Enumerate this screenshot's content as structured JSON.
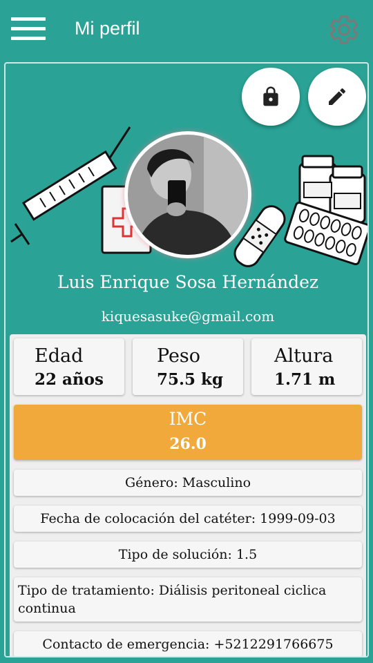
{
  "appbar": {
    "title": "Mi perfil",
    "menu_icon": "menu-icon",
    "settings_icon": "gear-icon"
  },
  "profile": {
    "name": "Luis Enrique Sosa Hernández",
    "email": "kiquesasuke@gmail.com"
  },
  "actions": {
    "lock_icon": "lock-icon",
    "edit_icon": "pencil-icon"
  },
  "stats": {
    "age_label": "Edad",
    "age_value": "22 años",
    "weight_label": "Peso",
    "weight_value": "75.5 kg",
    "height_label": "Altura",
    "height_value": "1.71 m"
  },
  "imc": {
    "label": "IMC",
    "value": "26.0"
  },
  "details": {
    "gender": "Género: Masculino",
    "catheter_date": "Fecha de colocación del catéter: 1999-09-03",
    "solution_type": "Tipo de solución: 1.5",
    "treatment_type": "Tipo de tratamiento: Diálisis peritoneal ciclica continua",
    "emergency_contact": "Contacto de emergencia: +5212291766675"
  },
  "colors": {
    "primary": "#2aa396",
    "imc_accent": "#f0a93a",
    "panel": "#eeeeee",
    "card_bg": "#f6f6f6"
  }
}
